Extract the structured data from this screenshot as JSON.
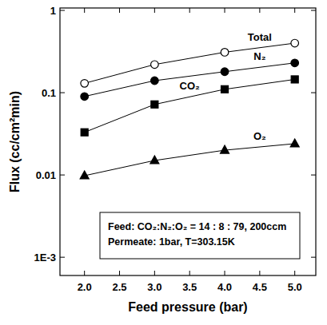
{
  "chart_data": {
    "type": "line",
    "x_label": "Feed pressure (bar)",
    "y_label": "Flux (cc/cm²min)",
    "x": [
      2.0,
      3.0,
      4.0,
      5.0
    ],
    "series": [
      {
        "name": "Total",
        "color": "#000000",
        "marker": "open-circle",
        "line_style": "solid",
        "values": [
          0.13,
          0.22,
          0.31,
          0.4
        ]
      },
      {
        "name": "N₂",
        "color": "#000000",
        "marker": "circle",
        "line_style": "solid",
        "values": [
          0.09,
          0.14,
          0.18,
          0.23
        ]
      },
      {
        "name": "CO₂",
        "color": "#000000",
        "marker": "square",
        "line_style": "solid",
        "values": [
          0.033,
          0.072,
          0.11,
          0.145
        ]
      },
      {
        "name": "O₂",
        "color": "#000000",
        "marker": "triangle",
        "line_style": "solid",
        "values": [
          0.0098,
          0.015,
          0.02,
          0.024
        ]
      }
    ],
    "annotations": [
      "Feed: CO₂:N₂:O₂ = 14 : 8 : 79, 200ccm",
      "Permeate: 1bar, T=303.15K"
    ],
    "xlim": [
      1.65,
      5.3
    ],
    "ylim": [
      0.0006,
      1.07
    ],
    "xticks": [
      {
        "value": 2.0,
        "label": "2.0"
      },
      {
        "value": 2.5,
        "label": "2.5"
      },
      {
        "value": 3.0,
        "label": "3.0"
      },
      {
        "value": 3.5,
        "label": "3.5"
      },
      {
        "value": 4.0,
        "label": "4.0"
      },
      {
        "value": 4.5,
        "label": "4.5"
      },
      {
        "value": 5.0,
        "label": "5.0"
      }
    ],
    "yticks": [
      {
        "value": 0.001,
        "label": "1E-3"
      },
      0.01,
      0.1,
      1
    ],
    "log": "y",
    "grid": false
  }
}
